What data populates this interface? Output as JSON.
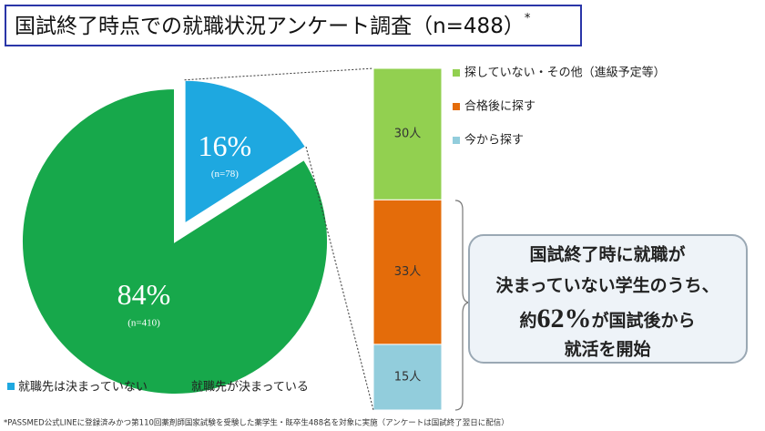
{
  "title": "国試終了時点での就職状況アンケート調査（n=488）",
  "title_note": "*",
  "chart_data": [
    {
      "type": "pie",
      "categories": [
        "就職先は決まっていない",
        "就職先が決まっている"
      ],
      "values": [
        16,
        84
      ],
      "value_labels": [
        "16%",
        "84%"
      ],
      "count_labels": [
        "(n=78)",
        "(n=410)"
      ],
      "colors": [
        "#1ea8e0",
        "#17a84b"
      ]
    },
    {
      "type": "stacked-bar",
      "series": [
        {
          "name": "今から探す",
          "color": "#92cddc",
          "values": [
            15
          ],
          "value_labels": [
            "15人"
          ]
        },
        {
          "name": "合格後に探す",
          "color": "#e46c0a",
          "values": [
            33
          ],
          "value_labels": [
            "33人"
          ]
        },
        {
          "name": "探していない・その他（進級予定等）",
          "color": "#92d050",
          "values": [
            30
          ],
          "value_labels": [
            "30人"
          ]
        }
      ]
    }
  ],
  "callout": {
    "line1": "国試終了時に就職が",
    "line2": "決まっていない学生のうち、",
    "line3_pre": "約",
    "line3_value": "62%",
    "line3_post": "が国試後から",
    "line4": "就活を開始"
  },
  "footnote": "*PASSMED公式LINEに登録済みかつ第110回薬剤師国家試験を受験した薬学生・既卒生488名を対象に実施（アンケートは国試終了翌日に配信）"
}
